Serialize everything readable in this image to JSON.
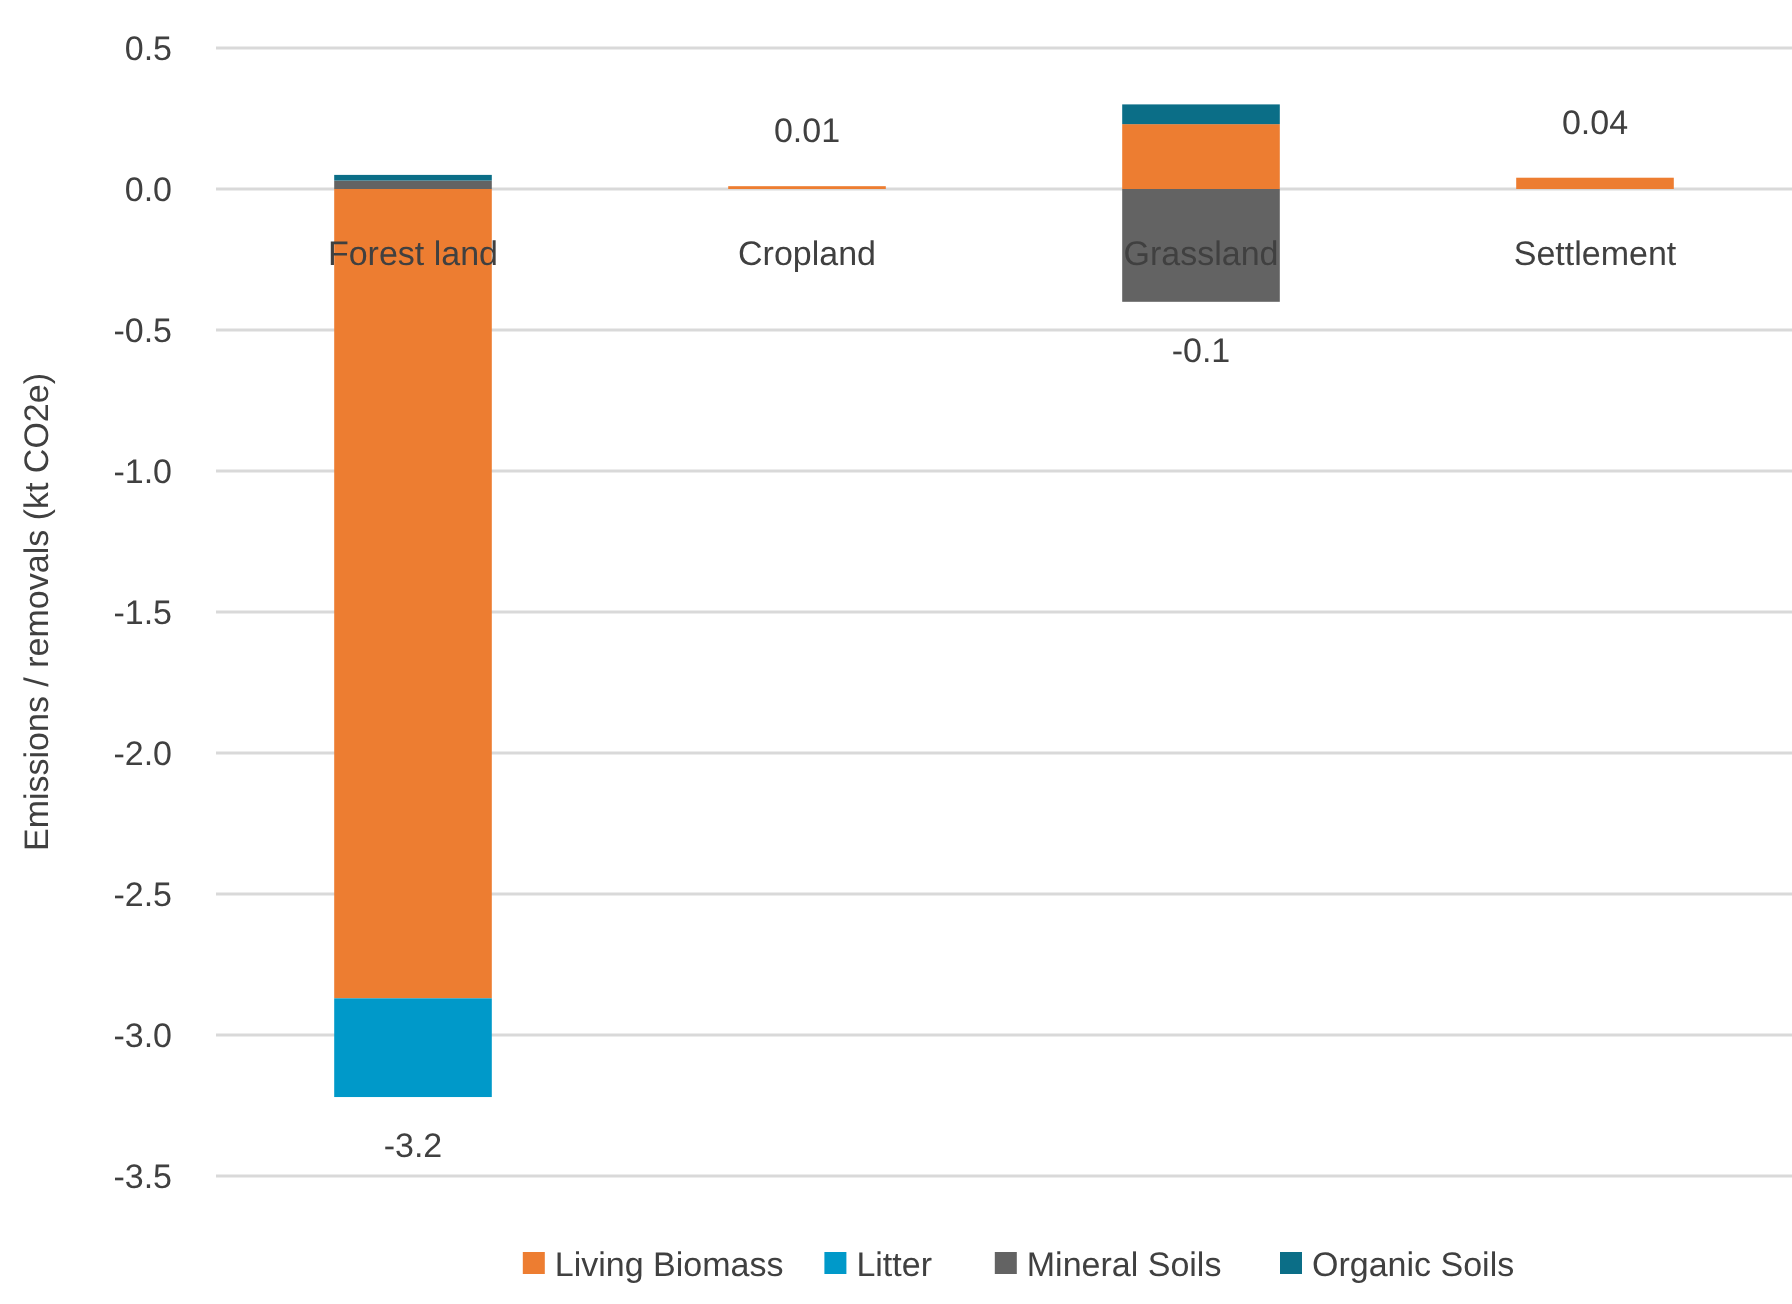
{
  "chart_data": {
    "type": "bar",
    "stacked": true,
    "ylabel": "Emissions / removals (kt CO2e)",
    "categories": [
      "Forest land",
      "Cropland",
      "Grassland",
      "Settlement"
    ],
    "series": [
      {
        "name": "Living Biomass",
        "color": "#ed7d31",
        "values": [
          -2.87,
          0.01,
          0.23,
          0.04
        ]
      },
      {
        "name": "Litter",
        "color": "#0099c9",
        "values": [
          -0.35,
          0,
          0,
          0
        ]
      },
      {
        "name": "Mineral Soils",
        "color": "#636363",
        "values": [
          0.03,
          0,
          -0.4,
          0
        ]
      },
      {
        "name": "Organic Soils",
        "color": "#0b6e87",
        "values": [
          0.02,
          0,
          0.07,
          0
        ]
      }
    ],
    "totals": [
      "-3.2",
      "0.01",
      "-0.1",
      "0.04"
    ],
    "ylim": [
      -3.5,
      0.5
    ],
    "yticks": [
      {
        "value": 0.5,
        "label": "0.5"
      },
      {
        "value": 0,
        "label": "0.0"
      },
      {
        "value": -0.5,
        "label": "-0.5"
      },
      {
        "value": -1,
        "label": "-1.0"
      },
      {
        "value": -1.5,
        "label": "-1.5"
      },
      {
        "value": -2,
        "label": "-2.0"
      },
      {
        "value": -2.5,
        "label": "-2.5"
      },
      {
        "value": -3,
        "label": "-3.0"
      },
      {
        "value": -3.5,
        "label": "-3.5"
      }
    ],
    "grid": "y",
    "legend": "bottom"
  }
}
